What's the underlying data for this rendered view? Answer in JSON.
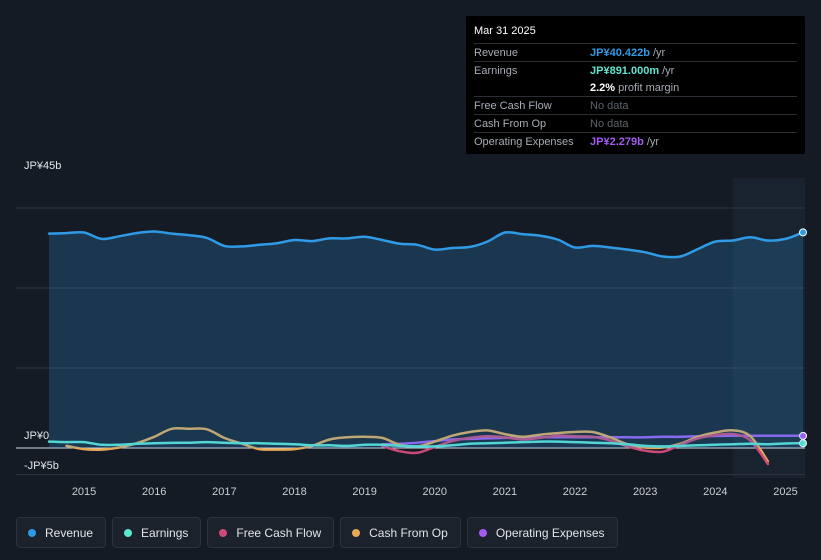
{
  "tooltip": {
    "date": "Mar 31 2025",
    "rows": [
      {
        "label": "Revenue",
        "value": "JP¥40.422b",
        "unit": "/yr",
        "color": "#2f9ae6"
      },
      {
        "label": "Earnings",
        "value": "JP¥891.000m",
        "unit": "/yr",
        "color": "#5ee6d0"
      },
      {
        "label": "",
        "value": "2.2%",
        "unit": "profit margin",
        "color": "#ffffff"
      },
      {
        "label": "Free Cash Flow",
        "value": "No data",
        "unit": "",
        "color": ""
      },
      {
        "label": "Cash From Op",
        "value": "No data",
        "unit": "",
        "color": ""
      },
      {
        "label": "Operating Expenses",
        "value": "JP¥2.279b",
        "unit": "/yr",
        "color": "#a35bf0"
      }
    ]
  },
  "legend": [
    {
      "label": "Revenue",
      "color": "#2f9ae6"
    },
    {
      "label": "Earnings",
      "color": "#5ee6d0"
    },
    {
      "label": "Free Cash Flow",
      "color": "#cc4a7a"
    },
    {
      "label": "Cash From Op",
      "color": "#e8a957"
    },
    {
      "label": "Operating Expenses",
      "color": "#a35bf0"
    }
  ],
  "chart_data": {
    "type": "line",
    "y_tick_labels": {
      "top": "JP¥45b",
      "zero": "JP¥0",
      "bottom": "-JP¥5b"
    },
    "ylim": [
      -5,
      45
    ],
    "xlim": [
      2014.5,
      2025.25
    ],
    "forecast_start": 2024.25,
    "x_ticks": [
      "2015",
      "2016",
      "2017",
      "2018",
      "2019",
      "2020",
      "2021",
      "2022",
      "2023",
      "2024",
      "2025"
    ],
    "grid": true,
    "series": [
      {
        "name": "Revenue",
        "color": "#2f9ae6",
        "area": true,
        "x": [
          2014.5,
          2014.75,
          2015.0,
          2015.25,
          2015.5,
          2015.75,
          2016.0,
          2016.25,
          2016.5,
          2016.75,
          2017.0,
          2017.25,
          2017.5,
          2017.75,
          2018.0,
          2018.25,
          2018.5,
          2018.75,
          2019.0,
          2019.25,
          2019.5,
          2019.75,
          2020.0,
          2020.25,
          2020.5,
          2020.75,
          2021.0,
          2021.25,
          2021.5,
          2021.75,
          2022.0,
          2022.25,
          2022.5,
          2022.75,
          2023.0,
          2023.25,
          2023.5,
          2023.75,
          2024.0,
          2024.25,
          2024.5,
          2024.75,
          2025.0,
          2025.25
        ],
        "values": [
          40.2,
          40.3,
          40.4,
          39.2,
          39.7,
          40.3,
          40.6,
          40.2,
          39.9,
          39.4,
          37.9,
          37.8,
          38.1,
          38.4,
          39.0,
          38.8,
          39.3,
          39.3,
          39.6,
          39.0,
          38.3,
          38.1,
          37.2,
          37.5,
          37.7,
          38.7,
          40.4,
          40.1,
          39.8,
          39.1,
          37.6,
          37.9,
          37.6,
          37.2,
          36.7,
          35.9,
          35.9,
          37.3,
          38.7,
          38.9,
          39.5,
          38.9,
          39.2,
          40.422
        ]
      },
      {
        "name": "Earnings",
        "color": "#5ee6d0",
        "x": [
          2014.5,
          2014.75,
          2015.0,
          2015.25,
          2015.5,
          2015.75,
          2016.0,
          2016.25,
          2016.5,
          2016.75,
          2017.0,
          2017.25,
          2017.5,
          2017.75,
          2018.0,
          2018.25,
          2018.5,
          2018.75,
          2019.0,
          2019.25,
          2019.5,
          2019.75,
          2020.0,
          2020.25,
          2020.5,
          2020.75,
          2021.0,
          2021.25,
          2021.5,
          2021.75,
          2022.0,
          2022.25,
          2022.5,
          2022.75,
          2023.0,
          2023.25,
          2023.5,
          2023.75,
          2024.0,
          2024.25,
          2024.5,
          2024.75,
          2025.0,
          2025.25
        ],
        "values": [
          1.2,
          1.1,
          1.1,
          0.6,
          0.6,
          0.8,
          0.9,
          0.95,
          1.0,
          1.1,
          1.0,
          0.9,
          0.9,
          0.8,
          0.7,
          0.5,
          0.5,
          0.4,
          0.6,
          0.6,
          0.4,
          0.3,
          0.3,
          0.5,
          0.8,
          0.9,
          1.0,
          1.1,
          1.2,
          1.2,
          1.1,
          1.0,
          0.9,
          0.7,
          0.4,
          0.3,
          0.4,
          0.5,
          0.6,
          0.7,
          0.8,
          0.7,
          0.85,
          0.891
        ]
      },
      {
        "name": "Free Cash Flow",
        "color": "#cc4a7a",
        "x": [
          2019.25,
          2019.5,
          2019.75,
          2020.0,
          2020.25,
          2020.5,
          2020.75,
          2021.0,
          2021.25,
          2021.5,
          2021.75,
          2022.0,
          2022.25,
          2022.5,
          2022.75,
          2023.0,
          2023.25,
          2023.5,
          2023.75,
          2024.0,
          2024.25,
          2024.5,
          2024.75
        ],
        "values": [
          0.4,
          -0.6,
          -0.9,
          0.2,
          1.3,
          1.9,
          2.2,
          2.0,
          1.6,
          1.9,
          2.3,
          2.2,
          2.1,
          1.4,
          0.3,
          -0.5,
          -0.7,
          0.6,
          1.8,
          2.4,
          2.6,
          1.4,
          -3.0
        ]
      },
      {
        "name": "Cash From Op",
        "color": "#e8a957",
        "x": [
          2014.75,
          2015.0,
          2015.25,
          2015.5,
          2015.75,
          2016.0,
          2016.25,
          2016.5,
          2016.75,
          2017.0,
          2017.25,
          2017.5,
          2017.75,
          2018.0,
          2018.25,
          2018.5,
          2018.75,
          2019.0,
          2019.25,
          2019.5,
          2019.75,
          2020.0,
          2020.25,
          2020.5,
          2020.75,
          2021.0,
          2021.25,
          2021.5,
          2021.75,
          2022.0,
          2022.25,
          2022.5,
          2022.75,
          2023.0,
          2023.25,
          2023.5,
          2023.75,
          2024.0,
          2024.25,
          2024.5,
          2024.75
        ],
        "values": [
          0.4,
          -0.2,
          -0.3,
          0.1,
          0.9,
          2.1,
          3.6,
          3.6,
          3.5,
          1.9,
          0.8,
          -0.2,
          -0.3,
          -0.2,
          0.4,
          1.6,
          2.0,
          2.1,
          1.9,
          0.6,
          0.3,
          1.2,
          2.3,
          3.0,
          3.3,
          2.6,
          2.1,
          2.5,
          2.8,
          3.0,
          3.0,
          2.0,
          0.7,
          0.1,
          0.1,
          0.8,
          2.1,
          2.9,
          3.3,
          2.2,
          -2.5
        ]
      },
      {
        "name": "Operating Expenses",
        "color": "#a35bf0",
        "x": [
          2019.25,
          2019.5,
          2019.75,
          2020.0,
          2020.25,
          2020.5,
          2020.75,
          2021.0,
          2021.25,
          2021.5,
          2021.75,
          2022.0,
          2022.25,
          2022.5,
          2022.75,
          2023.0,
          2023.25,
          2023.5,
          2023.75,
          2024.0,
          2024.25,
          2024.5,
          2024.75,
          2025.0,
          2025.25
        ],
        "values": [
          0.7,
          0.8,
          1.0,
          1.3,
          1.6,
          1.7,
          1.8,
          1.9,
          2.0,
          2.0,
          2.0,
          2.0,
          2.0,
          2.0,
          2.0,
          2.0,
          2.1,
          2.1,
          2.2,
          2.25,
          2.3,
          2.3,
          2.3,
          2.3,
          2.279
        ]
      }
    ]
  }
}
